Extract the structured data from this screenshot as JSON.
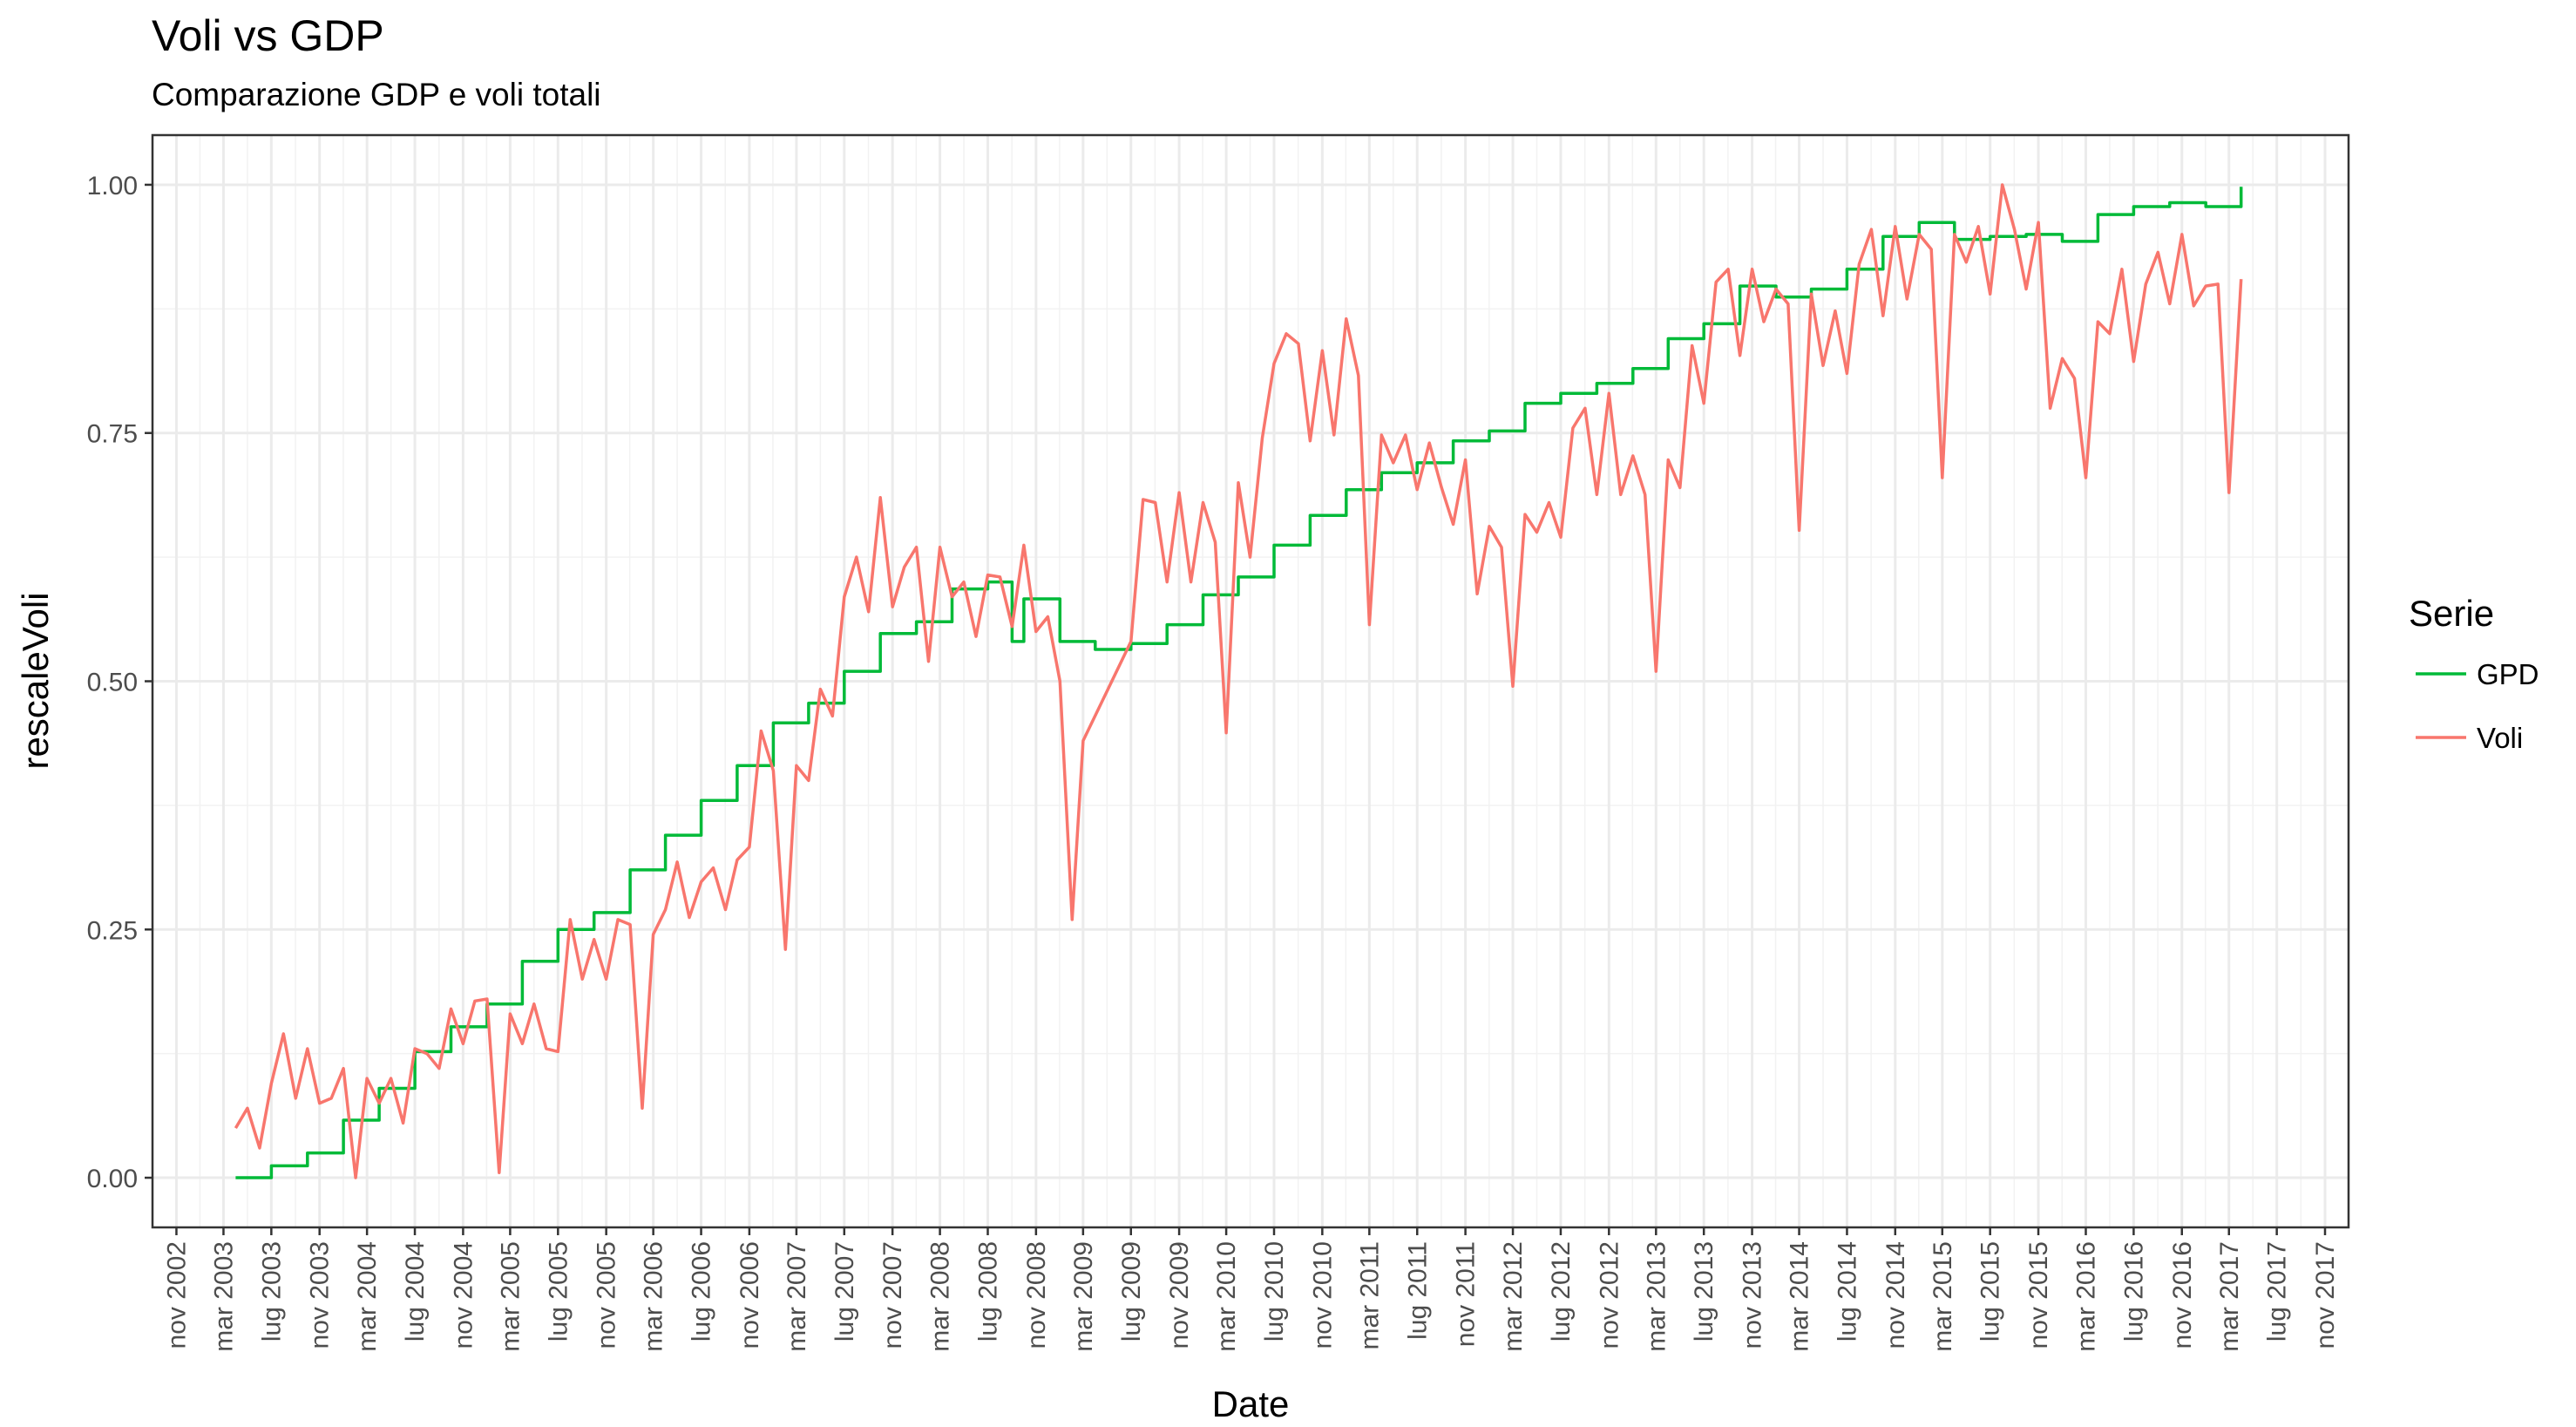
{
  "chart_data": {
    "type": "line",
    "title": "Voli vs GDP",
    "subtitle": "Comparazione GDP e voli totali",
    "xlabel": "Date",
    "ylabel": "rescaleVoli",
    "legend_title": "Serie",
    "legend_position": "right",
    "grid": true,
    "xlim": [
      "2002-09-01",
      "2017-12-31"
    ],
    "ylim": [
      -0.05,
      1.05
    ],
    "y_ticks": [
      0.0,
      0.25,
      0.5,
      0.75,
      1.0
    ],
    "y_tick_labels": [
      "0.00",
      "0.25",
      "0.50",
      "0.75",
      "1.00"
    ],
    "x_ticks": [
      "2002-11-01",
      "2003-03-01",
      "2003-07-01",
      "2003-11-01",
      "2004-03-01",
      "2004-07-01",
      "2004-11-01",
      "2005-03-01",
      "2005-07-01",
      "2005-11-01",
      "2006-03-01",
      "2006-07-01",
      "2006-11-01",
      "2007-03-01",
      "2007-07-01",
      "2007-11-01",
      "2008-03-01",
      "2008-07-01",
      "2008-11-01",
      "2009-03-01",
      "2009-07-01",
      "2009-11-01",
      "2010-03-01",
      "2010-07-01",
      "2010-11-01",
      "2011-03-01",
      "2011-07-01",
      "2011-11-01",
      "2012-03-01",
      "2012-07-01",
      "2012-11-01",
      "2013-03-01",
      "2013-07-01",
      "2013-11-01",
      "2014-03-01",
      "2014-07-01",
      "2014-11-01",
      "2015-03-01",
      "2015-07-01",
      "2015-11-01",
      "2016-03-01",
      "2016-07-01",
      "2016-11-01",
      "2017-03-01",
      "2017-07-01",
      "2017-11-01"
    ],
    "x_tick_labels": [
      "nov 2002",
      "mar 2003",
      "lug 2003",
      "nov 2003",
      "mar 2004",
      "lug 2004",
      "nov 2004",
      "mar 2005",
      "lug 2005",
      "nov 2005",
      "mar 2006",
      "lug 2006",
      "nov 2006",
      "mar 2007",
      "lug 2007",
      "nov 2007",
      "mar 2008",
      "lug 2008",
      "nov 2008",
      "mar 2009",
      "lug 2009",
      "nov 2009",
      "mar 2010",
      "lug 2010",
      "nov 2010",
      "mar 2011",
      "lug 2011",
      "nov 2011",
      "mar 2012",
      "lug 2012",
      "nov 2012",
      "mar 2013",
      "lug 2013",
      "nov 2013",
      "mar 2014",
      "lug 2014",
      "nov 2014",
      "mar 2015",
      "lug 2015",
      "nov 2015",
      "mar 2016",
      "lug 2016",
      "nov 2016",
      "mar 2017",
      "lug 2017",
      "nov 2017"
    ],
    "series": [
      {
        "name": "GPD",
        "color": "#00BA38",
        "step": true,
        "points": [
          [
            "2003-04-01",
            0.0
          ],
          [
            "2003-07-01",
            0.012
          ],
          [
            "2003-10-01",
            0.025
          ],
          [
            "2004-01-01",
            0.058
          ],
          [
            "2004-04-01",
            0.09
          ],
          [
            "2004-07-01",
            0.127
          ],
          [
            "2004-10-01",
            0.152
          ],
          [
            "2005-01-01",
            0.175
          ],
          [
            "2005-04-01",
            0.218
          ],
          [
            "2005-07-01",
            0.25
          ],
          [
            "2005-10-01",
            0.267
          ],
          [
            "2006-01-01",
            0.31
          ],
          [
            "2006-04-01",
            0.345
          ],
          [
            "2006-07-01",
            0.38
          ],
          [
            "2006-10-01",
            0.415
          ],
          [
            "2007-01-01",
            0.458
          ],
          [
            "2007-04-01",
            0.478
          ],
          [
            "2007-07-01",
            0.51
          ],
          [
            "2007-10-01",
            0.548
          ],
          [
            "2008-01-01",
            0.56
          ],
          [
            "2008-04-01",
            0.593
          ],
          [
            "2008-07-01",
            0.6
          ],
          [
            "2008-09-01",
            0.54
          ],
          [
            "2008-10-01",
            0.583
          ],
          [
            "2009-01-01",
            0.54
          ],
          [
            "2009-04-01",
            0.532
          ],
          [
            "2009-07-01",
            0.538
          ],
          [
            "2009-10-01",
            0.557
          ],
          [
            "2010-01-01",
            0.587
          ],
          [
            "2010-04-01",
            0.605
          ],
          [
            "2010-07-01",
            0.637
          ],
          [
            "2010-10-01",
            0.667
          ],
          [
            "2011-01-01",
            0.693
          ],
          [
            "2011-04-01",
            0.71
          ],
          [
            "2011-07-01",
            0.72
          ],
          [
            "2011-10-01",
            0.742
          ],
          [
            "2012-01-01",
            0.752
          ],
          [
            "2012-04-01",
            0.78
          ],
          [
            "2012-07-01",
            0.79
          ],
          [
            "2012-10-01",
            0.8
          ],
          [
            "2013-01-01",
            0.815
          ],
          [
            "2013-04-01",
            0.845
          ],
          [
            "2013-07-01",
            0.86
          ],
          [
            "2013-10-01",
            0.898
          ],
          [
            "2014-01-01",
            0.887
          ],
          [
            "2014-04-01",
            0.895
          ],
          [
            "2014-07-01",
            0.915
          ],
          [
            "2014-10-01",
            0.948
          ],
          [
            "2015-01-01",
            0.962
          ],
          [
            "2015-04-01",
            0.945
          ],
          [
            "2015-07-01",
            0.948
          ],
          [
            "2015-10-01",
            0.95
          ],
          [
            "2016-01-01",
            0.943
          ],
          [
            "2016-04-01",
            0.97
          ],
          [
            "2016-07-01",
            0.978
          ],
          [
            "2016-10-01",
            0.982
          ],
          [
            "2017-01-01",
            0.978
          ],
          [
            "2017-04-01",
            0.998
          ]
        ]
      },
      {
        "name": "Voli",
        "color": "#F8766D",
        "step": false,
        "points": [
          [
            "2003-04-01",
            0.05
          ],
          [
            "2003-05-01",
            0.07
          ],
          [
            "2003-06-01",
            0.03
          ],
          [
            "2003-07-01",
            0.095
          ],
          [
            "2003-08-01",
            0.145
          ],
          [
            "2003-09-01",
            0.08
          ],
          [
            "2003-10-01",
            0.13
          ],
          [
            "2003-11-01",
            0.075
          ],
          [
            "2003-12-01",
            0.08
          ],
          [
            "2004-01-01",
            0.11
          ],
          [
            "2004-02-01",
            0.0
          ],
          [
            "2004-03-01",
            0.1
          ],
          [
            "2004-04-01",
            0.075
          ],
          [
            "2004-05-01",
            0.1
          ],
          [
            "2004-06-01",
            0.055
          ],
          [
            "2004-07-01",
            0.13
          ],
          [
            "2004-08-01",
            0.125
          ],
          [
            "2004-09-01",
            0.11
          ],
          [
            "2004-10-01",
            0.17
          ],
          [
            "2004-11-01",
            0.135
          ],
          [
            "2004-12-01",
            0.178
          ],
          [
            "2005-01-01",
            0.18
          ],
          [
            "2005-02-01",
            0.005
          ],
          [
            "2005-03-01",
            0.165
          ],
          [
            "2005-04-01",
            0.135
          ],
          [
            "2005-05-01",
            0.175
          ],
          [
            "2005-06-01",
            0.13
          ],
          [
            "2005-07-01",
            0.127
          ],
          [
            "2005-08-01",
            0.26
          ],
          [
            "2005-09-01",
            0.2
          ],
          [
            "2005-10-01",
            0.24
          ],
          [
            "2005-11-01",
            0.2
          ],
          [
            "2005-12-01",
            0.26
          ],
          [
            "2006-01-01",
            0.255
          ],
          [
            "2006-02-01",
            0.07
          ],
          [
            "2006-03-01",
            0.245
          ],
          [
            "2006-04-01",
            0.27
          ],
          [
            "2006-05-01",
            0.318
          ],
          [
            "2006-06-01",
            0.262
          ],
          [
            "2006-07-01",
            0.298
          ],
          [
            "2006-08-01",
            0.312
          ],
          [
            "2006-09-01",
            0.27
          ],
          [
            "2006-10-01",
            0.32
          ],
          [
            "2006-11-01",
            0.333
          ],
          [
            "2006-12-01",
            0.45
          ],
          [
            "2007-01-01",
            0.41
          ],
          [
            "2007-02-01",
            0.23
          ],
          [
            "2007-03-01",
            0.415
          ],
          [
            "2007-04-01",
            0.4
          ],
          [
            "2007-05-01",
            0.492
          ],
          [
            "2007-06-01",
            0.465
          ],
          [
            "2007-07-01",
            0.585
          ],
          [
            "2007-08-01",
            0.625
          ],
          [
            "2007-09-01",
            0.57
          ],
          [
            "2007-10-01",
            0.685
          ],
          [
            "2007-11-01",
            0.575
          ],
          [
            "2007-12-01",
            0.615
          ],
          [
            "2008-01-01",
            0.635
          ],
          [
            "2008-02-01",
            0.52
          ],
          [
            "2008-03-01",
            0.635
          ],
          [
            "2008-04-01",
            0.585
          ],
          [
            "2008-05-01",
            0.6
          ],
          [
            "2008-06-01",
            0.545
          ],
          [
            "2008-07-01",
            0.607
          ],
          [
            "2008-08-01",
            0.605
          ],
          [
            "2008-09-01",
            0.555
          ],
          [
            "2008-10-01",
            0.637
          ],
          [
            "2008-11-01",
            0.55
          ],
          [
            "2008-12-01",
            0.565
          ],
          [
            "2009-01-01",
            0.5
          ],
          [
            "2009-02-01",
            0.26
          ],
          [
            "2009-03-01",
            0.44
          ],
          [
            "2009-07-01",
            0.54
          ],
          [
            "2009-08-01",
            0.683
          ],
          [
            "2009-09-01",
            0.68
          ],
          [
            "2009-10-01",
            0.6
          ],
          [
            "2009-11-01",
            0.69
          ],
          [
            "2009-12-01",
            0.6
          ],
          [
            "2010-01-01",
            0.68
          ],
          [
            "2010-02-01",
            0.64
          ],
          [
            "2010-03-01",
            0.448
          ],
          [
            "2010-04-01",
            0.7
          ],
          [
            "2010-05-01",
            0.625
          ],
          [
            "2010-06-01",
            0.745
          ],
          [
            "2010-07-01",
            0.82
          ],
          [
            "2010-08-01",
            0.85
          ],
          [
            "2010-09-01",
            0.84
          ],
          [
            "2010-10-01",
            0.742
          ],
          [
            "2010-11-01",
            0.833
          ],
          [
            "2010-12-01",
            0.748
          ],
          [
            "2011-01-01",
            0.865
          ],
          [
            "2011-02-01",
            0.808
          ],
          [
            "2011-03-01",
            0.557
          ],
          [
            "2011-04-01",
            0.748
          ],
          [
            "2011-05-01",
            0.72
          ],
          [
            "2011-06-01",
            0.748
          ],
          [
            "2011-07-01",
            0.693
          ],
          [
            "2011-08-01",
            0.74
          ],
          [
            "2011-09-01",
            0.695
          ],
          [
            "2011-10-01",
            0.658
          ],
          [
            "2011-11-01",
            0.723
          ],
          [
            "2011-12-01",
            0.588
          ],
          [
            "2012-01-01",
            0.656
          ],
          [
            "2012-02-01",
            0.635
          ],
          [
            "2012-03-01",
            0.495
          ],
          [
            "2012-04-01",
            0.668
          ],
          [
            "2012-05-01",
            0.65
          ],
          [
            "2012-06-01",
            0.68
          ],
          [
            "2012-07-01",
            0.645
          ],
          [
            "2012-08-01",
            0.755
          ],
          [
            "2012-09-01",
            0.775
          ],
          [
            "2012-10-01",
            0.688
          ],
          [
            "2012-11-01",
            0.79
          ],
          [
            "2012-12-01",
            0.688
          ],
          [
            "2013-01-01",
            0.727
          ],
          [
            "2013-02-01",
            0.688
          ],
          [
            "2013-03-01",
            0.51
          ],
          [
            "2013-04-01",
            0.723
          ],
          [
            "2013-05-01",
            0.695
          ],
          [
            "2013-06-01",
            0.838
          ],
          [
            "2013-07-01",
            0.78
          ],
          [
            "2013-08-01",
            0.902
          ],
          [
            "2013-09-01",
            0.915
          ],
          [
            "2013-10-01",
            0.828
          ],
          [
            "2013-11-01",
            0.915
          ],
          [
            "2013-12-01",
            0.862
          ],
          [
            "2014-01-01",
            0.895
          ],
          [
            "2014-02-01",
            0.88
          ],
          [
            "2014-03-01",
            0.652
          ],
          [
            "2014-04-01",
            0.89
          ],
          [
            "2014-05-01",
            0.818
          ],
          [
            "2014-06-01",
            0.873
          ],
          [
            "2014-07-01",
            0.81
          ],
          [
            "2014-08-01",
            0.92
          ],
          [
            "2014-09-01",
            0.955
          ],
          [
            "2014-10-01",
            0.868
          ],
          [
            "2014-11-01",
            0.958
          ],
          [
            "2014-12-01",
            0.885
          ],
          [
            "2015-01-01",
            0.95
          ],
          [
            "2015-02-01",
            0.935
          ],
          [
            "2015-03-01",
            0.705
          ],
          [
            "2015-04-01",
            0.95
          ],
          [
            "2015-05-01",
            0.922
          ],
          [
            "2015-06-01",
            0.958
          ],
          [
            "2015-07-01",
            0.89
          ],
          [
            "2015-08-01",
            1.0
          ],
          [
            "2015-09-01",
            0.955
          ],
          [
            "2015-10-01",
            0.895
          ],
          [
            "2015-11-01",
            0.962
          ],
          [
            "2015-12-01",
            0.775
          ],
          [
            "2016-01-01",
            0.825
          ],
          [
            "2016-02-01",
            0.805
          ],
          [
            "2016-03-01",
            0.705
          ],
          [
            "2016-04-01",
            0.862
          ],
          [
            "2016-05-01",
            0.85
          ],
          [
            "2016-06-01",
            0.915
          ],
          [
            "2016-07-01",
            0.822
          ],
          [
            "2016-08-01",
            0.9
          ],
          [
            "2016-09-01",
            0.932
          ],
          [
            "2016-10-01",
            0.88
          ],
          [
            "2016-11-01",
            0.95
          ],
          [
            "2016-12-01",
            0.878
          ],
          [
            "2017-01-01",
            0.898
          ],
          [
            "2017-02-01",
            0.9
          ],
          [
            "2017-03-01",
            0.69
          ],
          [
            "2017-04-01",
            0.905
          ]
        ]
      }
    ]
  }
}
